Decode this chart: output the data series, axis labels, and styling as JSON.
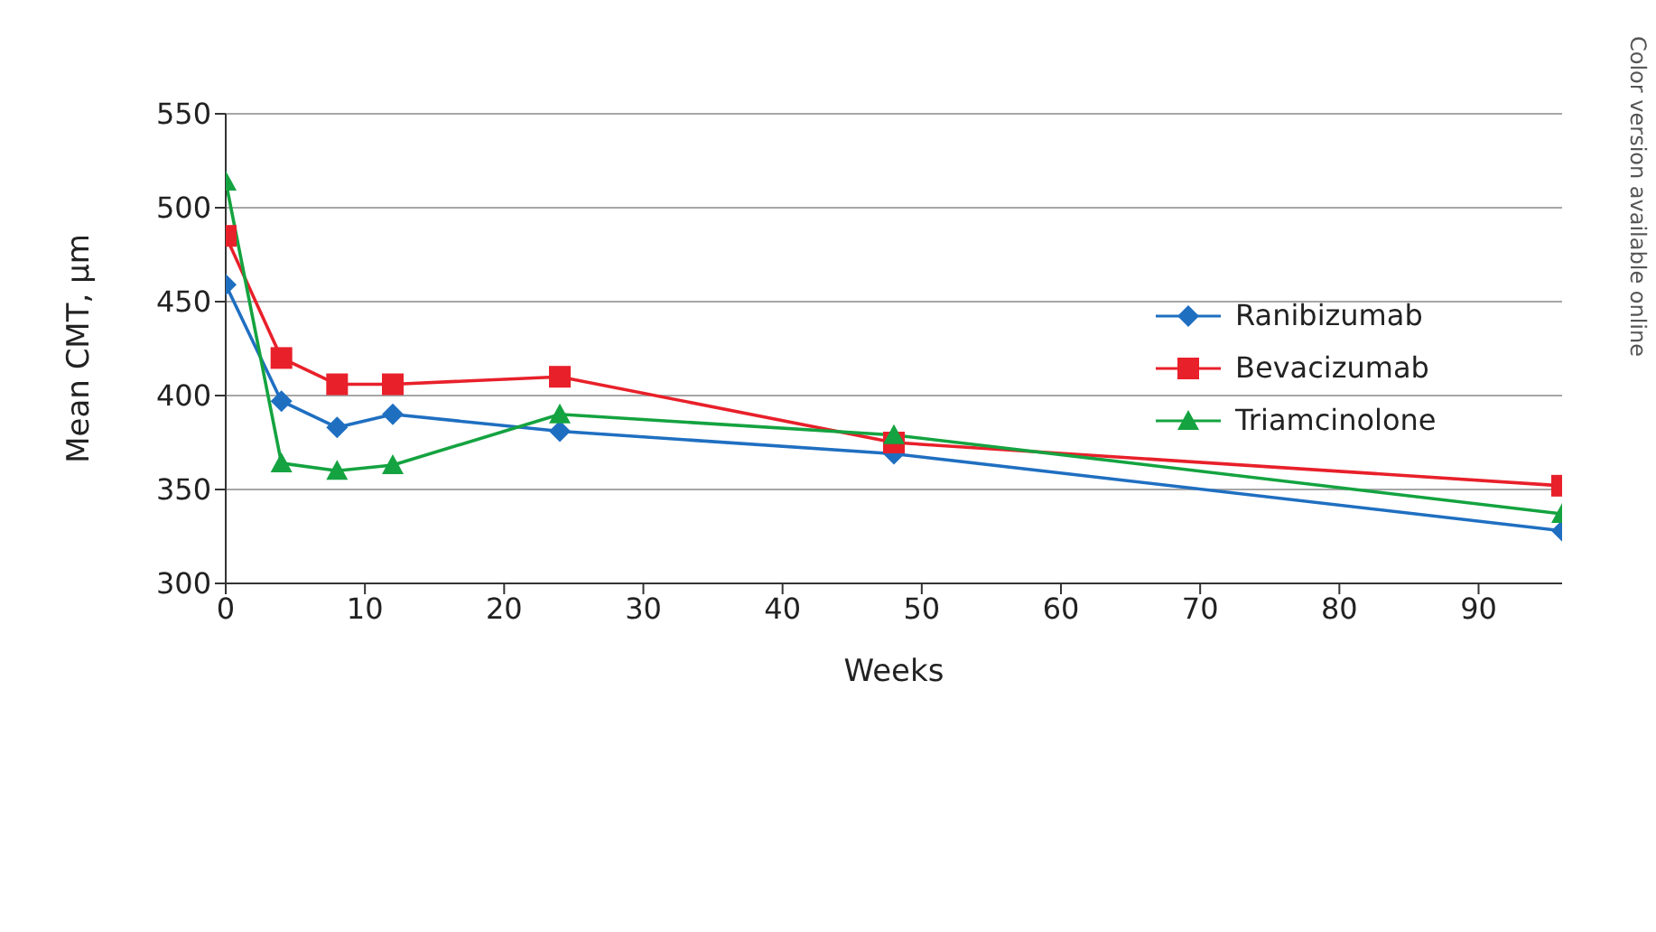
{
  "chart_data": {
    "type": "line",
    "xlabel": "Weeks",
    "ylabel": "Mean CMT, µm",
    "x": [
      0,
      4,
      8,
      12,
      24,
      48,
      96
    ],
    "series": [
      {
        "name": "Ranibizumab",
        "color": "#1f6fc1",
        "marker": "diamond",
        "values": [
          459,
          397,
          383,
          390,
          381,
          369,
          328
        ]
      },
      {
        "name": "Bevacizumab",
        "color": "#e8202a",
        "marker": "square",
        "values": [
          485,
          420,
          406,
          406,
          410,
          375,
          352
        ]
      },
      {
        "name": "Triamcinolone",
        "color": "#14a340",
        "marker": "triangle",
        "values": [
          514,
          364,
          360,
          363,
          390,
          379,
          337
        ]
      }
    ],
    "xlim": [
      0,
      96
    ],
    "xticks": [
      0,
      10,
      20,
      30,
      40,
      50,
      60,
      70,
      80,
      90
    ],
    "ylim": [
      300,
      550
    ],
    "yticks": [
      300,
      350,
      400,
      450,
      500,
      550
    ],
    "grid": "y",
    "legend": "right",
    "annotations": [
      "Color version available online"
    ]
  }
}
